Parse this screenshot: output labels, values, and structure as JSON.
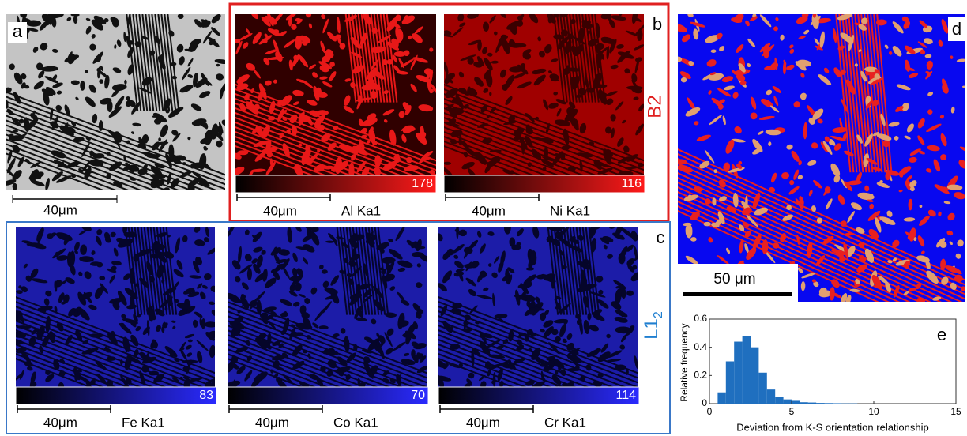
{
  "panels": {
    "a": {
      "label": "a",
      "scale_bar": "40μm"
    },
    "b": {
      "label": "b",
      "phase": "B2",
      "maps": [
        {
          "scale_bar": "40μm",
          "element": "Al Ka1",
          "max": 178
        },
        {
          "scale_bar": "40μm",
          "element": "Ni Ka1",
          "max": 116
        }
      ]
    },
    "c": {
      "label": "c",
      "phase": "L1",
      "phase_subscript": "2",
      "maps": [
        {
          "scale_bar": "40μm",
          "element": "Fe Ka1",
          "max": 83
        },
        {
          "scale_bar": "40μm",
          "element": "Co Ka1",
          "max": 70
        },
        {
          "scale_bar": "40μm",
          "element": "Cr Ka1",
          "max": 114
        }
      ]
    },
    "d": {
      "label": "d",
      "scale_bar": "50 μm"
    },
    "e": {
      "label": "e"
    }
  },
  "chart_data": {
    "type": "histogram",
    "xlabel": "Deviation  from K-S orientation relationship",
    "ylabel": "Relative frequency",
    "bins": [
      0,
      0.5,
      1,
      1.5,
      2,
      2.5,
      3,
      3.5,
      4,
      4.5,
      5,
      5.5,
      6,
      6.5,
      7,
      7.5,
      8,
      8.5,
      9
    ],
    "counts": [
      0,
      0.08,
      0.3,
      0.44,
      0.48,
      0.4,
      0.22,
      0.1,
      0.05,
      0.03,
      0.02,
      0.01,
      0.008,
      0.005,
      0.004,
      0.003,
      0.002,
      0.002
    ],
    "color": "#1f6fbf",
    "xlim": [
      0,
      15
    ],
    "ylim": [
      0,
      0.6
    ],
    "xticks": [
      0,
      5,
      10,
      15
    ],
    "yticks": [
      0,
      0.2,
      0.4,
      0.6
    ]
  }
}
